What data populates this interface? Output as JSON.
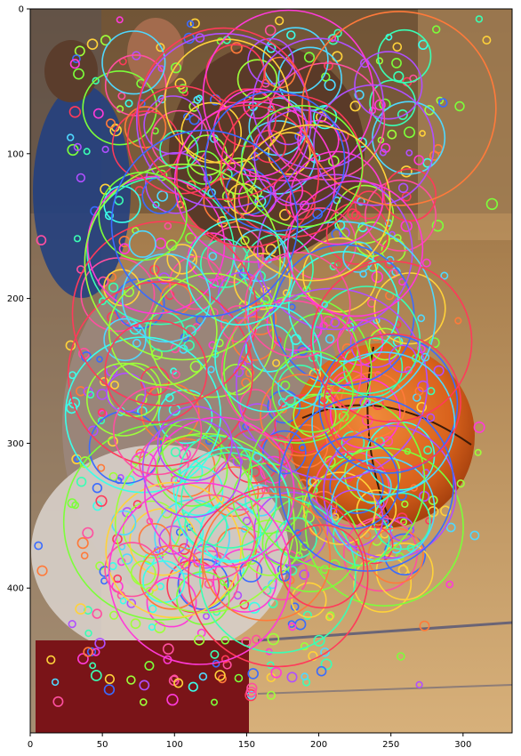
{
  "figure": {
    "x_axis": {
      "ticks": [
        0,
        50,
        100,
        150,
        200,
        250,
        300
      ],
      "range": [
        0,
        334
      ]
    },
    "y_axis": {
      "ticks": [
        0,
        100,
        200,
        300,
        400
      ],
      "range": [
        500,
        0
      ]
    },
    "image_subject": "child in white shirt and red shorts holding an orange basketball on a gym floor, with a child in a blue jersey in the background",
    "overlay": "many multicolored keypoint circles of varying radii concentrated over the child and ball",
    "circle_colors": [
      "#ff4fa0",
      "#4fd8ff",
      "#7cff3a",
      "#b04fff",
      "#ffd23a",
      "#3affb4",
      "#ff7a3a",
      "#3a6bff",
      "#ff3ad8",
      "#9dff3a",
      "#3affea",
      "#ff3a5a"
    ]
  }
}
